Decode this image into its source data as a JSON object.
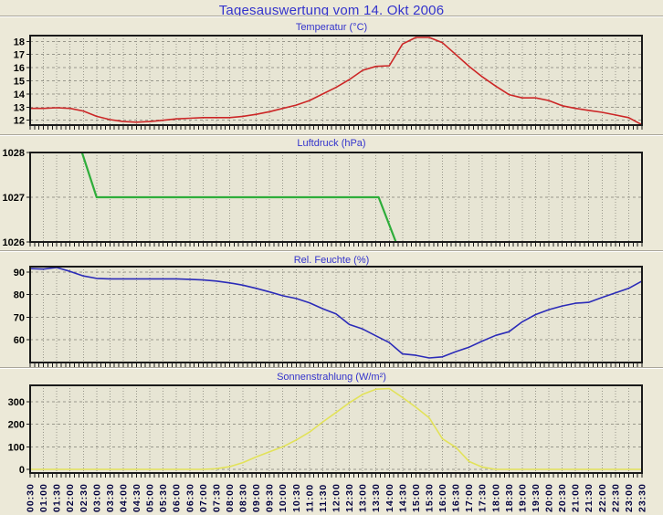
{
  "page": {
    "title": "Tagesauswertung vom 14. Okt 2006"
  },
  "colors": {
    "page_bg": "#ECE9D8",
    "plot_bg": "#E7E5D4",
    "border": "#1A1A1A",
    "grid": "#98978B",
    "title": "#3333CC",
    "y_label": "#000000",
    "x_label": "#000040",
    "temperature": "#CC2626",
    "pressure": "#2EAD3A",
    "humidity": "#2B2BB8",
    "radiation": "#E2E259"
  },
  "x_axis": {
    "start_hour": 0.5,
    "end_hour": 23.5,
    "step_hour": 0.5,
    "minor_tick_minutes": 10,
    "labels": [
      "00:30",
      "01:00",
      "01:30",
      "02:00",
      "02:30",
      "03:00",
      "03:30",
      "04:00",
      "04:30",
      "05:00",
      "05:30",
      "06:00",
      "06:30",
      "07:00",
      "07:30",
      "08:00",
      "08:30",
      "09:00",
      "09:30",
      "10:00",
      "10:30",
      "11:00",
      "11:30",
      "12:00",
      "12:30",
      "13:00",
      "13:30",
      "14:00",
      "14:30",
      "15:00",
      "15:30",
      "16:00",
      "16:30",
      "17:00",
      "17:30",
      "18:00",
      "18:30",
      "19:00",
      "19:30",
      "20:00",
      "20:30",
      "21:00",
      "21:30",
      "22:00",
      "22:30",
      "23:00",
      "23:30"
    ]
  },
  "chart_data": [
    {
      "type": "line",
      "title": "Temperatur (°C)",
      "color_key": "temperature",
      "stroke_width": 1.6,
      "y_ticks": [
        12,
        13,
        14,
        15,
        16,
        17,
        18
      ],
      "y_range": [
        11.63,
        18.44
      ],
      "values": [
        12.9,
        12.9,
        12.95,
        12.9,
        12.7,
        12.3,
        12.05,
        11.9,
        11.85,
        11.9,
        12.0,
        12.1,
        12.15,
        12.2,
        12.2,
        12.2,
        12.3,
        12.45,
        12.65,
        12.9,
        13.15,
        13.5,
        14.0,
        14.5,
        15.1,
        15.8,
        16.1,
        16.15,
        17.8,
        18.3,
        18.3,
        17.9,
        17.0,
        16.1,
        15.3,
        14.6,
        13.95,
        13.7,
        13.7,
        13.5,
        13.1,
        12.9,
        12.75,
        12.6,
        12.4,
        12.2,
        11.65
      ]
    },
    {
      "type": "line",
      "title": "Luftdruck (hPa)",
      "color_key": "pressure",
      "stroke_width": 2.2,
      "y_ticks": [
        1026,
        1027,
        1028
      ],
      "y_range": [
        1026,
        1028
      ],
      "points": [
        [
          2.45,
          1028
        ],
        [
          3.0,
          1027
        ],
        [
          13.6,
          1027
        ],
        [
          14.25,
          1026
        ]
      ]
    },
    {
      "type": "line",
      "title": "Rel. Feuchte (%)",
      "color_key": "humidity",
      "stroke_width": 1.6,
      "y_ticks": [
        60,
        70,
        80,
        90
      ],
      "y_range": [
        50.0,
        92.4
      ],
      "values": [
        91.5,
        91.3,
        92.0,
        90.3,
        88.3,
        87.2,
        87.0,
        87.0,
        87.0,
        87.0,
        87.0,
        87.0,
        86.8,
        86.5,
        86.0,
        85.2,
        84.2,
        82.8,
        81.2,
        79.5,
        78.3,
        76.4,
        73.8,
        71.5,
        66.8,
        64.8,
        61.8,
        58.8,
        53.8,
        53.2,
        52.0,
        52.5,
        54.8,
        56.8,
        59.5,
        62.0,
        63.6,
        68.0,
        71.2,
        73.4,
        75.0,
        76.2,
        76.6,
        78.8,
        80.8,
        82.8,
        86.0
      ]
    },
    {
      "type": "line",
      "title": "Sonnenstrahlung (W/m²)",
      "color_key": "radiation",
      "stroke_width": 1.6,
      "y_ticks": [
        0,
        100,
        200,
        300
      ],
      "y_range": [
        -16,
        372
      ],
      "values": [
        0,
        0,
        0,
        0,
        0,
        0,
        0,
        0,
        0,
        0,
        0,
        0,
        0,
        0,
        3,
        12,
        30,
        55,
        78,
        100,
        130,
        165,
        210,
        252,
        295,
        332,
        355,
        358,
        318,
        275,
        228,
        135,
        98,
        35,
        10,
        0,
        0,
        0,
        0,
        0,
        0,
        0,
        0,
        0,
        0,
        0,
        0
      ]
    }
  ]
}
